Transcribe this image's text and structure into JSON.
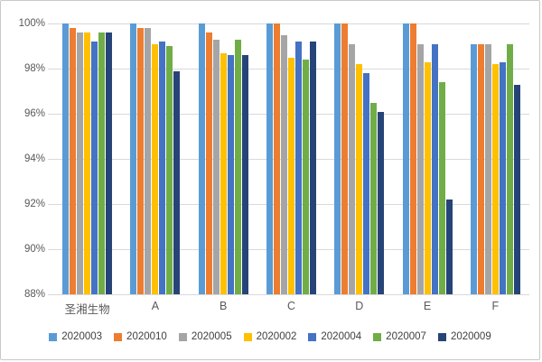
{
  "chart_data": {
    "type": "bar",
    "title": "",
    "xlabel": "",
    "ylabel": "",
    "categories": [
      "圣湘生物",
      "A",
      "B",
      "C",
      "D",
      "E",
      "F"
    ],
    "series": [
      {
        "name": "2020003",
        "color": "#5B9BD5",
        "values": [
          100,
          100,
          100,
          100,
          100,
          100,
          99.1
        ]
      },
      {
        "name": "2020010",
        "color": "#ED7D31",
        "values": [
          99.8,
          99.8,
          99.6,
          100,
          100,
          100,
          99.1
        ]
      },
      {
        "name": "2020005",
        "color": "#A5A5A5",
        "values": [
          99.6,
          99.8,
          99.3,
          99.5,
          99.1,
          99.1,
          99.1
        ]
      },
      {
        "name": "2020002",
        "color": "#FFC000",
        "values": [
          99.6,
          99.1,
          98.7,
          98.5,
          98.2,
          98.3,
          98.2
        ]
      },
      {
        "name": "2020004",
        "color": "#4472C4",
        "values": [
          99.2,
          99.2,
          98.6,
          99.2,
          97.8,
          99.1,
          98.3
        ]
      },
      {
        "name": "2020007",
        "color": "#70AD47",
        "values": [
          99.6,
          99.0,
          99.3,
          98.4,
          96.5,
          97.4,
          99.1
        ]
      },
      {
        "name": "2020009",
        "color": "#264478",
        "values": [
          99.6,
          97.9,
          98.6,
          99.2,
          96.1,
          92.2,
          97.3
        ]
      }
    ],
    "ylim": [
      88,
      100
    ],
    "ytick_step": 2,
    "ytick_labels": [
      "88%",
      "90%",
      "92%",
      "94%",
      "96%",
      "98%",
      "100%"
    ],
    "grid": true,
    "legend_position": "bottom"
  },
  "style_colors": {
    "gridline": "#d9d9d9",
    "axis_text": "#595959",
    "legend_text": "#404040",
    "frame_border": "#c9c9c9"
  }
}
